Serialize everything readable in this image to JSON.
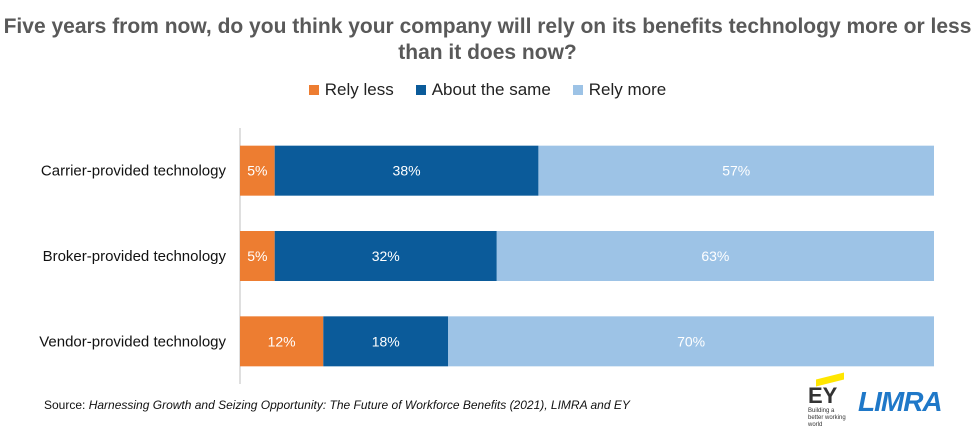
{
  "chart_data": {
    "type": "bar",
    "orientation": "horizontal",
    "stacked": true,
    "title": "Five years from now, do you think your company will rely on its benefits technology more or less than it does now?",
    "categories": [
      "Carrier-provided technology",
      "Broker-provided technology",
      "Vendor-provided technology"
    ],
    "series": [
      {
        "name": "Rely less",
        "color": "#ed7d31",
        "values": [
          5,
          5,
          12
        ]
      },
      {
        "name": "About the same",
        "color": "#0b5b9a",
        "values": [
          38,
          32,
          18
        ]
      },
      {
        "name": "Rely more",
        "color": "#9dc3e6",
        "values": [
          57,
          63,
          70
        ]
      }
    ],
    "value_format": "percent",
    "xlim": [
      0,
      100
    ],
    "legend_position": "top",
    "grid": false
  },
  "source": {
    "prefix": "Source: ",
    "text": "Harnessing Growth and Seizing Opportunity: The Future of Workforce Benefits (2021), LIMRA and EY"
  },
  "logos": {
    "ey_text": "EY",
    "ey_tagline": "Building a better working world",
    "limra_text": "LIMRA"
  }
}
